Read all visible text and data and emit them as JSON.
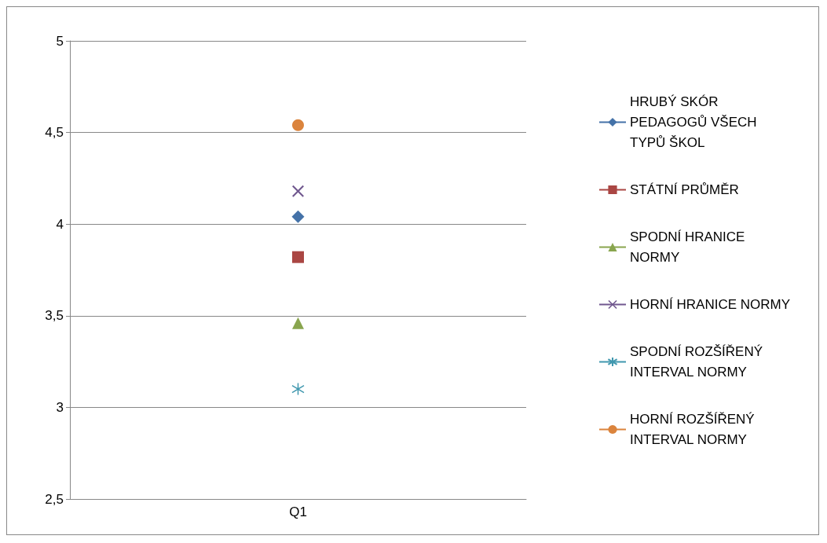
{
  "chart_data": {
    "type": "line",
    "categories": [
      "Q1"
    ],
    "series": [
      {
        "name": "HRUBÝ SKÓR PEDAGOGŮ VŠECH TYPŮ ŠKOL",
        "color": "#4472a8",
        "marker": "diamond",
        "values": [
          4.04
        ]
      },
      {
        "name": "STÁTNÍ PRŮMĚR",
        "color": "#aa4643",
        "marker": "square",
        "values": [
          3.82
        ]
      },
      {
        "name": "SPODNÍ HRANICE NORMY",
        "color": "#89a54e",
        "marker": "triangle",
        "values": [
          3.46
        ]
      },
      {
        "name": "HORNÍ HRANICE NORMY",
        "color": "#71588f",
        "marker": "cross",
        "values": [
          4.18
        ]
      },
      {
        "name": "SPODNÍ ROZŠÍŘENÝ INTERVAL NORMY",
        "color": "#4198af",
        "marker": "star",
        "values": [
          3.1
        ]
      },
      {
        "name": "HORNÍ ROZŠÍŘENÝ INTERVAL NORMY",
        "color": "#db843d",
        "marker": "circle",
        "values": [
          4.54
        ]
      }
    ],
    "ylim": [
      2.5,
      5
    ],
    "yticks": [
      {
        "value": 2.5,
        "label": "2,5"
      },
      3,
      {
        "value": 3.5,
        "label": "3,5"
      },
      4,
      {
        "value": 4.5,
        "label": "4,5"
      },
      5
    ],
    "grid": "y",
    "legend": "right"
  }
}
